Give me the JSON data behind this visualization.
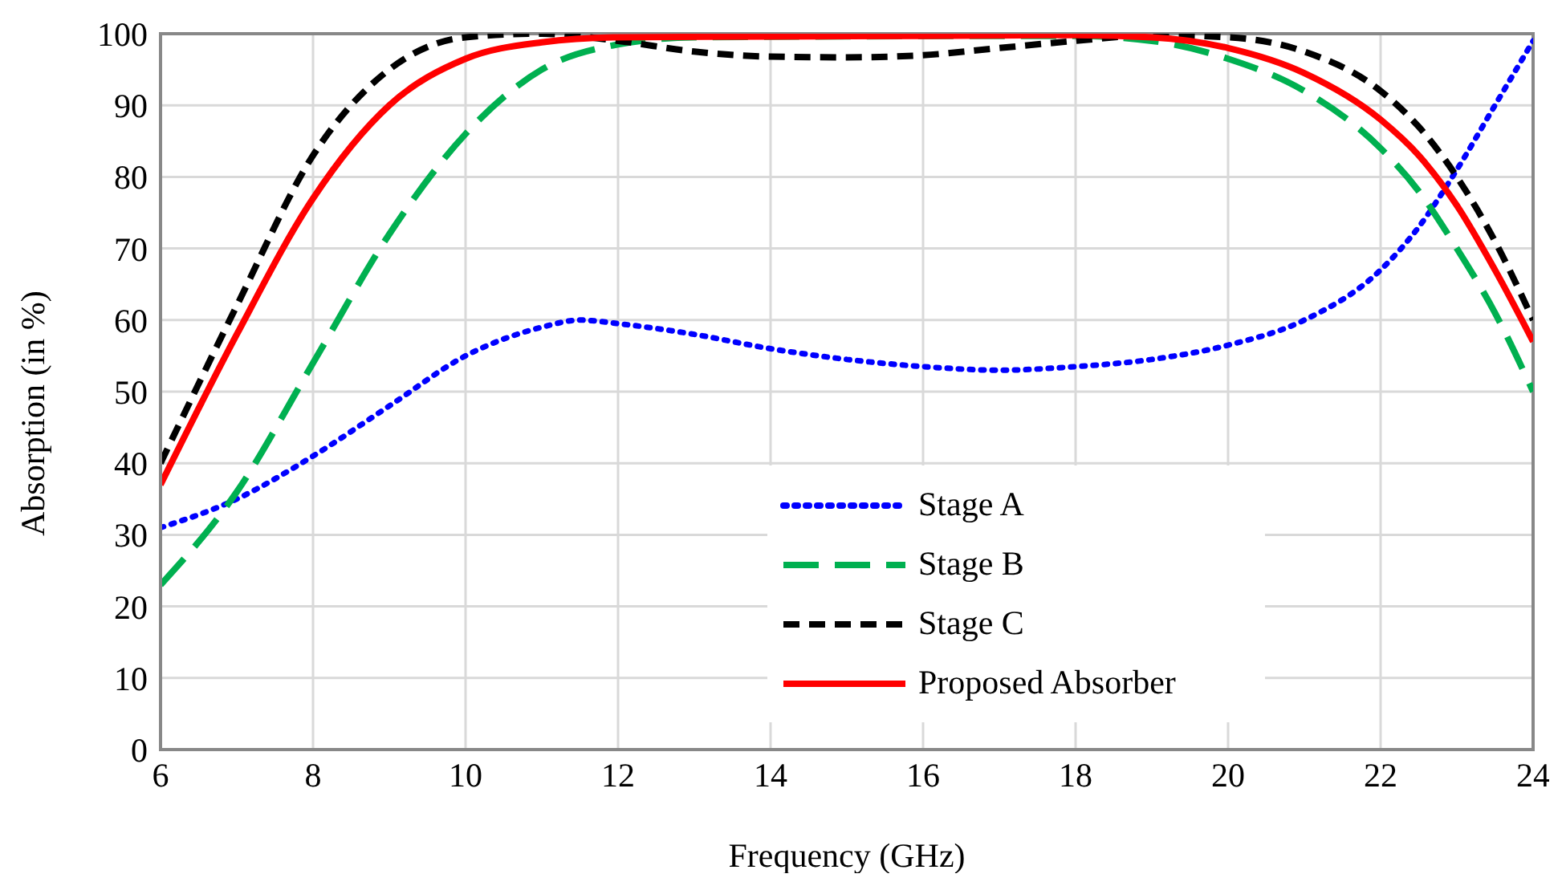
{
  "chart_data": {
    "type": "line",
    "xlabel": "Frequency (GHz)",
    "ylabel": "Absorption (in %)",
    "xlim": [
      6,
      24
    ],
    "xticks": [
      6,
      8,
      10,
      12,
      14,
      16,
      18,
      20,
      22,
      24
    ],
    "ylim": [
      0,
      100
    ],
    "yticks": [
      0,
      10,
      20,
      30,
      40,
      50,
      60,
      70,
      80,
      90,
      100
    ],
    "grid": true,
    "legend": "bottom",
    "marker": "none",
    "series": [
      {
        "name": "Stage A",
        "color": "#0000ff",
        "line_style": "dotted",
        "x": [
          6,
          7,
          8,
          9,
          10,
          11,
          11.5,
          12,
          13,
          14,
          15,
          16,
          17,
          18,
          19,
          20,
          21,
          22,
          22.5,
          23,
          23.5,
          24
        ],
        "values": [
          31,
          35,
          41,
          48,
          55,
          59,
          60,
          59.5,
          58,
          56,
          54.5,
          53.5,
          53,
          53.5,
          54.5,
          56.5,
          60,
          67,
          73,
          81,
          90,
          99
        ]
      },
      {
        "name": "Stage B",
        "color": "#00b050",
        "line_style": "dashed",
        "x": [
          6,
          7,
          8,
          9,
          10,
          11,
          12,
          13,
          18,
          19,
          20,
          21,
          22,
          22.5,
          23,
          23.5,
          24
        ],
        "values": [
          23,
          36,
          54,
          72,
          86,
          95,
          98.5,
          99.5,
          99.7,
          99,
          96.5,
          92,
          84,
          78,
          70,
          61,
          50
        ]
      },
      {
        "name": "Stage C",
        "color": "#000000",
        "line_style": "dashed",
        "x": [
          6,
          7,
          8,
          9,
          10,
          11,
          12,
          13,
          14,
          15,
          16,
          17,
          18,
          19,
          20,
          21,
          22,
          22.5,
          23,
          23.5,
          24
        ],
        "values": [
          40,
          62,
          83,
          95,
          99.5,
          100,
          99,
          97.5,
          96.8,
          96.7,
          97,
          98,
          99,
          99.8,
          99.5,
          97.5,
          92,
          87,
          80,
          71,
          60
        ]
      },
      {
        "name": "Proposed Absorber",
        "color": "#ff0000",
        "line_style": "solid",
        "x": [
          6,
          7,
          8,
          9,
          10,
          11,
          12,
          14,
          16,
          18,
          19,
          20,
          21,
          22,
          22.5,
          23,
          23.5,
          24
        ],
        "values": [
          37,
          58,
          77,
          90,
          96.5,
          98.8,
          99.5,
          99.6,
          99.7,
          99.8,
          99.5,
          98,
          94.5,
          88,
          83,
          76,
          67,
          57
        ]
      }
    ]
  }
}
